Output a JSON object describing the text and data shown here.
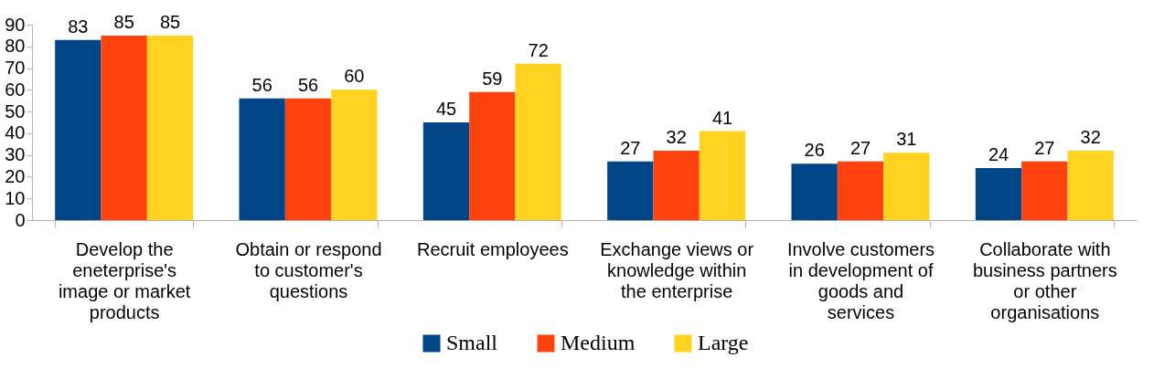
{
  "chart_data": {
    "type": "bar",
    "categories": [
      "Develop the eneterprise's image or market products",
      "Obtain or respond to customer's questions",
      "Recruit employees",
      "Exchange views or knowledge within the enterprise",
      "Involve customers in development of goods and services",
      "Collaborate with business partners or other organisations"
    ],
    "series": [
      {
        "name": "Small",
        "color": "#004586",
        "values": [
          83,
          56,
          45,
          27,
          26,
          24
        ]
      },
      {
        "name": "Medium",
        "color": "#ff420e",
        "values": [
          85,
          56,
          59,
          32,
          27,
          27
        ]
      },
      {
        "name": "Large",
        "color": "#ffd320",
        "values": [
          85,
          60,
          72,
          41,
          31,
          32
        ]
      }
    ],
    "ylim": [
      0,
      90
    ],
    "yticks": [
      0,
      10,
      20,
      30,
      40,
      50,
      60,
      70,
      80,
      90
    ],
    "grid": false,
    "legend": "bottom",
    "data_labels": true
  }
}
